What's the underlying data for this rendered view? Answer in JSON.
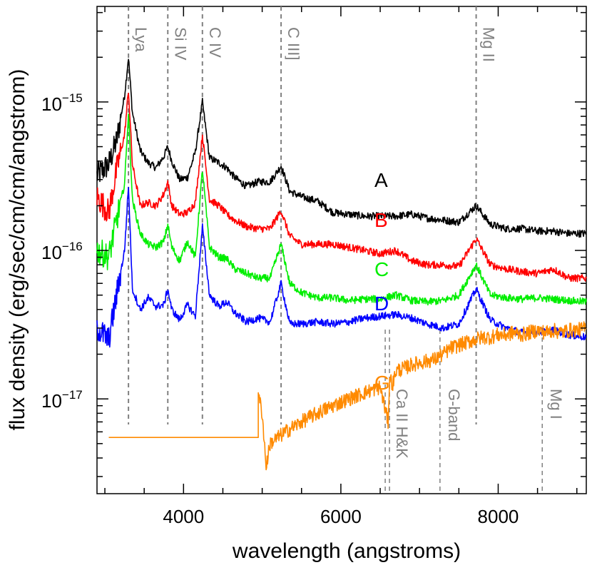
{
  "chart_data": {
    "type": "line",
    "title": "",
    "xlabel": "wavelength (angstroms)",
    "ylabel": "flux density (erg/sec/cm/cm/angstrom)",
    "xlim": [
      2900,
      9120
    ],
    "ylim": [
      2.3e-18,
      4.4e-15
    ],
    "y_scale": "log",
    "grid": false,
    "x_ticks": [
      {
        "value": 4000,
        "label": "4000"
      },
      {
        "value": 6000,
        "label": "6000"
      },
      {
        "value": 8000,
        "label": "8000"
      }
    ],
    "y_ticks": [
      {
        "value": 1e-15,
        "base": "10",
        "exp": "−15"
      },
      {
        "value": 1e-16,
        "base": "10",
        "exp": "−16"
      },
      {
        "value": 1e-17,
        "base": "10",
        "exp": "−17"
      }
    ],
    "emission_lines": [
      {
        "name": "Lya",
        "wavelength": 3300
      },
      {
        "name": "Si IV",
        "wavelength": 3800
      },
      {
        "name": "C IV",
        "wavelength": 4240
      },
      {
        "name": "C III]",
        "wavelength": 5240
      },
      {
        "name": "Mg II",
        "wavelength": 7720
      }
    ],
    "absorption_lines": [
      {
        "name": "Ca II H&K",
        "wavelength": 6600
      },
      {
        "name": "G-band",
        "wavelength": 7260
      },
      {
        "name": "Mg I",
        "wavelength": 8560
      }
    ],
    "series": [
      {
        "name": "A",
        "color": "#000000",
        "x": [
          2900,
          3050,
          3150,
          3250,
          3300,
          3350,
          3450,
          3550,
          3650,
          3750,
          3800,
          3850,
          3950,
          4050,
          4150,
          4240,
          4330,
          4450,
          4550,
          4650,
          4800,
          4950,
          5100,
          5240,
          5350,
          5500,
          5700,
          5900,
          6100,
          6300,
          6500,
          6700,
          6900,
          7100,
          7300,
          7500,
          7720,
          7900,
          8100,
          8300,
          8500,
          8700,
          8900,
          9120
        ],
        "values": [
          3.2e-16,
          3.8e-16,
          5.5e-16,
          1.1e-15,
          2e-15,
          8.5e-16,
          4.7e-16,
          3.9e-16,
          3.6e-16,
          4.3e-16,
          5e-16,
          4e-16,
          3e-16,
          3.1e-16,
          4.6e-16,
          1e-15,
          4.2e-16,
          3.9e-16,
          3.6e-16,
          3.1e-16,
          2.7e-16,
          2.9e-16,
          2.9e-16,
          3.7e-16,
          2.5e-16,
          2.3e-16,
          2.15e-16,
          1.8e-16,
          1.75e-16,
          1.7e-16,
          1.7e-16,
          1.7e-16,
          1.75e-16,
          1.65e-16,
          1.6e-16,
          1.55e-16,
          2e-16,
          1.5e-16,
          1.4e-16,
          1.4e-16,
          1.35e-16,
          1.35e-16,
          1.3e-16,
          1.3e-16
        ]
      },
      {
        "name": "B",
        "color": "#ff0000",
        "x": [
          2900,
          3050,
          3150,
          3250,
          3300,
          3350,
          3450,
          3550,
          3650,
          3750,
          3800,
          3850,
          3950,
          4050,
          4150,
          4240,
          4330,
          4450,
          4550,
          4650,
          4800,
          4950,
          5100,
          5240,
          5350,
          5500,
          5700,
          5900,
          6100,
          6300,
          6500,
          6700,
          6900,
          7100,
          7300,
          7500,
          7720,
          7900,
          8100,
          8300,
          8500,
          8700,
          8900,
          9120
        ],
        "values": [
          2.3e-16,
          1.8e-16,
          3.5e-16,
          6e-16,
          1.2e-15,
          3.8e-16,
          2e-16,
          2.1e-16,
          2e-16,
          2.4e-16,
          2.9e-16,
          2e-16,
          1.75e-16,
          1.8e-16,
          2.1e-16,
          6e-16,
          2.2e-16,
          2e-16,
          1.75e-16,
          1.6e-16,
          1.45e-16,
          1.4e-16,
          1.4e-16,
          1.85e-16,
          1.25e-16,
          1.1e-16,
          1.1e-16,
          1.1e-16,
          1.05e-16,
          1e-16,
          9.5e-17,
          1e-16,
          8.5e-17,
          8e-17,
          8e-17,
          7.8e-17,
          1.2e-16,
          8e-17,
          7.5e-17,
          7.2e-17,
          7e-17,
          7.5e-17,
          6.5e-17,
          6.5e-17
        ]
      },
      {
        "name": "C",
        "color": "#00ee00",
        "x": [
          2900,
          3050,
          3150,
          3250,
          3300,
          3350,
          3450,
          3550,
          3650,
          3750,
          3800,
          3850,
          3950,
          4050,
          4150,
          4240,
          4330,
          4450,
          4550,
          4650,
          4800,
          4950,
          5100,
          5240,
          5350,
          5500,
          5700,
          5900,
          6100,
          6300,
          6500,
          6700,
          6900,
          7100,
          7300,
          7500,
          7720,
          7900,
          8100,
          8300,
          8500,
          8700,
          8900,
          9120
        ],
        "values": [
          1e-16,
          9e-17,
          1.6e-16,
          2.8e-16,
          8.5e-16,
          2.2e-16,
          1.3e-16,
          1.1e-16,
          1.05e-16,
          1.15e-16,
          1.5e-16,
          1.05e-16,
          8.5e-17,
          1.15e-16,
          9e-17,
          3.5e-16,
          1.05e-16,
          9e-17,
          8.8e-17,
          7.5e-17,
          7e-17,
          6.5e-17,
          6.5e-17,
          1.1e-16,
          6e-17,
          5.2e-17,
          4.8e-17,
          4.8e-17,
          4.6e-17,
          4.7e-17,
          4.7e-17,
          5e-17,
          4.6e-17,
          4.5e-17,
          4.6e-17,
          5e-17,
          8e-17,
          5e-17,
          4.8e-17,
          4.7e-17,
          4.8e-17,
          4.7e-17,
          4.6e-17,
          4.5e-17
        ]
      },
      {
        "name": "D",
        "color": "#0000ff",
        "x": [
          2900,
          3050,
          3150,
          3250,
          3300,
          3350,
          3450,
          3550,
          3650,
          3750,
          3800,
          3850,
          3950,
          4050,
          4150,
          4240,
          4330,
          4450,
          4550,
          4650,
          4800,
          4950,
          5100,
          5240,
          5350,
          5500,
          5700,
          5900,
          6100,
          6300,
          6500,
          6700,
          6900,
          7100,
          7300,
          7500,
          7720,
          7900,
          8100,
          8300,
          8500,
          8700,
          8900,
          9120
        ],
        "values": [
          3e-17,
          2.5e-17,
          5e-17,
          1e-16,
          2.7e-16,
          5.5e-17,
          4e-17,
          4.8e-17,
          4.2e-17,
          4.3e-17,
          5.5e-17,
          4e-17,
          3.4e-17,
          4.3e-17,
          3.6e-17,
          1.45e-16,
          5e-17,
          4.2e-17,
          4.5e-17,
          3.8e-17,
          3.3e-17,
          3.5e-17,
          3.3e-17,
          6e-17,
          3.2e-17,
          3.2e-17,
          3.3e-17,
          3.2e-17,
          3.3e-17,
          3.5e-17,
          3.6e-17,
          3.7e-17,
          3.5e-17,
          3.2e-17,
          3e-17,
          3.2e-17,
          5.5e-17,
          3.4e-17,
          3e-17,
          2.8e-17,
          2.8e-17,
          2.9e-17,
          2.7e-17,
          2.6e-17
        ]
      },
      {
        "name": "G",
        "color": "#ff8a00",
        "x": [
          3050,
          4950,
          4950,
          5000,
          5050,
          5100,
          5200,
          5300,
          5400,
          5500,
          5600,
          5700,
          5800,
          5900,
          6000,
          6100,
          6200,
          6300,
          6400,
          6500,
          6600,
          6620,
          6660,
          6700,
          6800,
          6900,
          7000,
          7100,
          7200,
          7260,
          7300,
          7400,
          7500,
          7600,
          7700,
          7800,
          7900,
          8000,
          8100,
          8200,
          8300,
          8400,
          8500,
          8600,
          8700,
          8800,
          8900,
          9000,
          9120
        ],
        "values": [
          5.5e-18,
          5.5e-18,
          1.1e-17,
          8e-18,
          3.5e-18,
          5e-18,
          5.5e-18,
          6e-18,
          6.5e-18,
          7e-18,
          7.5e-18,
          8e-18,
          8.5e-18,
          9e-18,
          9.5e-18,
          1e-17,
          1.05e-17,
          1.1e-17,
          1.15e-17,
          1.2e-17,
          7e-18,
          1.4e-17,
          1.25e-17,
          1.55e-17,
          1.6e-17,
          1.7e-17,
          1.75e-17,
          1.8e-17,
          1.85e-17,
          1.95e-17,
          2e-17,
          2.2e-17,
          2.3e-17,
          2.4e-17,
          2.5e-17,
          2.6e-17,
          2.6e-17,
          2.7e-17,
          2.7e-17,
          2.8e-17,
          2.7e-17,
          2.8e-17,
          2.9e-17,
          2.8e-17,
          2.9e-17,
          2.8e-17,
          2.9e-17,
          2.9e-17,
          3e-17
        ]
      }
    ]
  }
}
